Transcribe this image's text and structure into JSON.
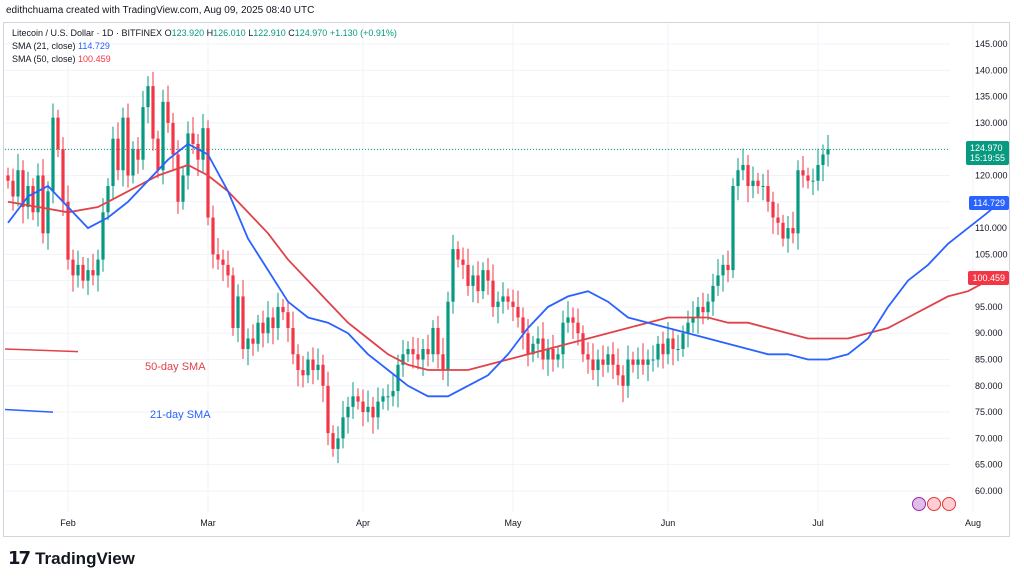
{
  "header": {
    "text": "edithchuama created with TradingView.com, Aug 09, 2025 08:40 UTC"
  },
  "legend": {
    "title": "Litecoin / U.S. Dollar · 1D · BITFINEX",
    "ohlc": {
      "o_label": "O",
      "o": "123.920",
      "h_label": "H",
      "h": "126.010",
      "l_label": "L",
      "l": "122.910",
      "c_label": "C",
      "c": "124.970",
      "change": "+1.130 (+0.91%)"
    },
    "sma21": {
      "label": "SMA (21, close)",
      "value": "114.729"
    },
    "sma50": {
      "label": "SMA (50, close)",
      "value": "100.459"
    }
  },
  "price_labels": {
    "last": "124.970",
    "countdown": "15:19:55",
    "sma21": "114.729",
    "sma50": "100.459"
  },
  "annotations": {
    "sma50": "50-day SMA",
    "sma21": "21-day SMA"
  },
  "footer": {
    "brand": "TradingView",
    "logo": "17"
  },
  "colors": {
    "up": "#089981",
    "down": "#f23645",
    "sma21": "#2962ff",
    "sma50": "#e0424a",
    "grid": "#f0f3fa",
    "axis_text": "#131722"
  },
  "chart_data": {
    "type": "candlestick",
    "title": "Litecoin / U.S. Dollar · 1D · BITFINEX",
    "y_ticks": [
      60,
      65,
      70,
      75,
      80,
      85,
      90,
      95,
      100,
      105,
      110,
      115,
      120,
      125,
      130,
      135,
      140,
      145
    ],
    "y_tick_labels": [
      "60.000",
      "65.000",
      "70.000",
      "75.000",
      "80.000",
      "85.000",
      "90.000",
      "95.000",
      "100.000",
      "105.000",
      "110.000",
      "115.000",
      "120.000",
      "125.000",
      "130.000",
      "135.000",
      "140.000",
      "145.000"
    ],
    "ylim": [
      56,
      149
    ],
    "x_ticks": [
      {
        "label": "Feb",
        "day": 0
      },
      {
        "label": "Mar",
        "day": 28
      },
      {
        "label": "Apr",
        "day": 59
      },
      {
        "label": "May",
        "day": 89
      },
      {
        "label": "Jun",
        "day": 120
      },
      {
        "label": "Jul",
        "day": 150
      },
      {
        "label": "Aug",
        "day": 181
      }
    ],
    "first_day": -12,
    "last_price_line": 124.97,
    "closes": [
      119,
      116,
      121,
      114,
      118,
      113,
      120,
      109,
      117,
      131,
      125,
      115,
      104,
      101,
      103,
      100,
      102,
      101,
      104,
      113,
      118,
      127,
      121,
      131,
      120,
      125,
      123,
      133,
      137,
      127,
      121,
      134,
      130,
      124,
      115,
      120,
      128,
      126,
      123,
      129,
      112,
      105,
      104,
      103,
      101,
      91,
      97,
      87,
      89,
      88,
      92,
      90,
      93,
      91,
      95,
      94,
      91,
      86,
      83,
      82,
      85,
      83,
      84,
      80,
      71,
      68,
      70,
      74,
      76,
      78,
      77,
      75,
      76,
      74,
      77,
      78,
      78,
      79,
      84,
      86,
      87,
      86,
      85,
      87,
      86,
      91,
      86,
      83,
      96,
      106,
      104,
      103,
      99,
      101,
      98,
      102,
      100,
      95,
      96,
      97,
      96,
      95,
      93,
      90,
      86,
      88,
      89,
      85,
      87,
      85,
      86,
      92,
      93,
      92,
      90,
      86,
      85,
      83,
      85,
      84,
      86,
      84,
      82,
      80,
      85,
      84,
      85,
      84,
      85,
      85,
      88,
      86,
      89,
      87,
      87,
      90,
      92,
      93,
      95,
      94,
      96,
      99,
      101,
      103,
      102,
      118,
      121,
      122,
      118,
      119,
      118,
      118,
      115,
      112,
      111,
      108,
      110,
      109,
      121,
      120,
      119,
      119,
      122,
      124,
      125
    ],
    "opens_note": "each candle opens at the previous close",
    "highs_extra": 1.5,
    "lows_extra": 1.5,
    "sma21": [
      [
        -12,
        111
      ],
      [
        -8,
        116
      ],
      [
        -4,
        118
      ],
      [
        0,
        114
      ],
      [
        4,
        110
      ],
      [
        8,
        112
      ],
      [
        12,
        115
      ],
      [
        16,
        119
      ],
      [
        20,
        123
      ],
      [
        24,
        126
      ],
      [
        28,
        124
      ],
      [
        32,
        117
      ],
      [
        36,
        108
      ],
      [
        40,
        102
      ],
      [
        44,
        96
      ],
      [
        48,
        93
      ],
      [
        52,
        92
      ],
      [
        56,
        90
      ],
      [
        60,
        86
      ],
      [
        64,
        83
      ],
      [
        68,
        80
      ],
      [
        72,
        78
      ],
      [
        76,
        78
      ],
      [
        80,
        80
      ],
      [
        84,
        82
      ],
      [
        88,
        86
      ],
      [
        92,
        91
      ],
      [
        96,
        95
      ],
      [
        100,
        97
      ],
      [
        104,
        98
      ],
      [
        108,
        96
      ],
      [
        112,
        93
      ],
      [
        116,
        92
      ],
      [
        120,
        91
      ],
      [
        124,
        90
      ],
      [
        128,
        89
      ],
      [
        132,
        88
      ],
      [
        136,
        87
      ],
      [
        140,
        86
      ],
      [
        144,
        86
      ],
      [
        148,
        85
      ],
      [
        152,
        85
      ],
      [
        156,
        86
      ],
      [
        160,
        89
      ],
      [
        164,
        95
      ],
      [
        168,
        100
      ],
      [
        172,
        103
      ],
      [
        176,
        107
      ],
      [
        180,
        110
      ],
      [
        184,
        113
      ],
      [
        186,
        114.7
      ]
    ],
    "sma50": [
      [
        -12,
        115
      ],
      [
        -6,
        114
      ],
      [
        0,
        113
      ],
      [
        6,
        114
      ],
      [
        12,
        117
      ],
      [
        18,
        120
      ],
      [
        24,
        122
      ],
      [
        28,
        120
      ],
      [
        32,
        117
      ],
      [
        36,
        113
      ],
      [
        40,
        109
      ],
      [
        44,
        104
      ],
      [
        48,
        100
      ],
      [
        52,
        96
      ],
      [
        56,
        92
      ],
      [
        60,
        89
      ],
      [
        64,
        86
      ],
      [
        68,
        84
      ],
      [
        72,
        83
      ],
      [
        76,
        83
      ],
      [
        80,
        83
      ],
      [
        84,
        84
      ],
      [
        88,
        85
      ],
      [
        92,
        86
      ],
      [
        96,
        87
      ],
      [
        100,
        88
      ],
      [
        104,
        89
      ],
      [
        108,
        90
      ],
      [
        112,
        91
      ],
      [
        116,
        92
      ],
      [
        120,
        93
      ],
      [
        124,
        93
      ],
      [
        128,
        93
      ],
      [
        132,
        92
      ],
      [
        136,
        92
      ],
      [
        140,
        91
      ],
      [
        144,
        90
      ],
      [
        148,
        89
      ],
      [
        152,
        89
      ],
      [
        156,
        89
      ],
      [
        160,
        90
      ],
      [
        164,
        91
      ],
      [
        168,
        93
      ],
      [
        172,
        95
      ],
      [
        176,
        97
      ],
      [
        180,
        98
      ],
      [
        184,
        100
      ],
      [
        186,
        100.5
      ]
    ]
  }
}
